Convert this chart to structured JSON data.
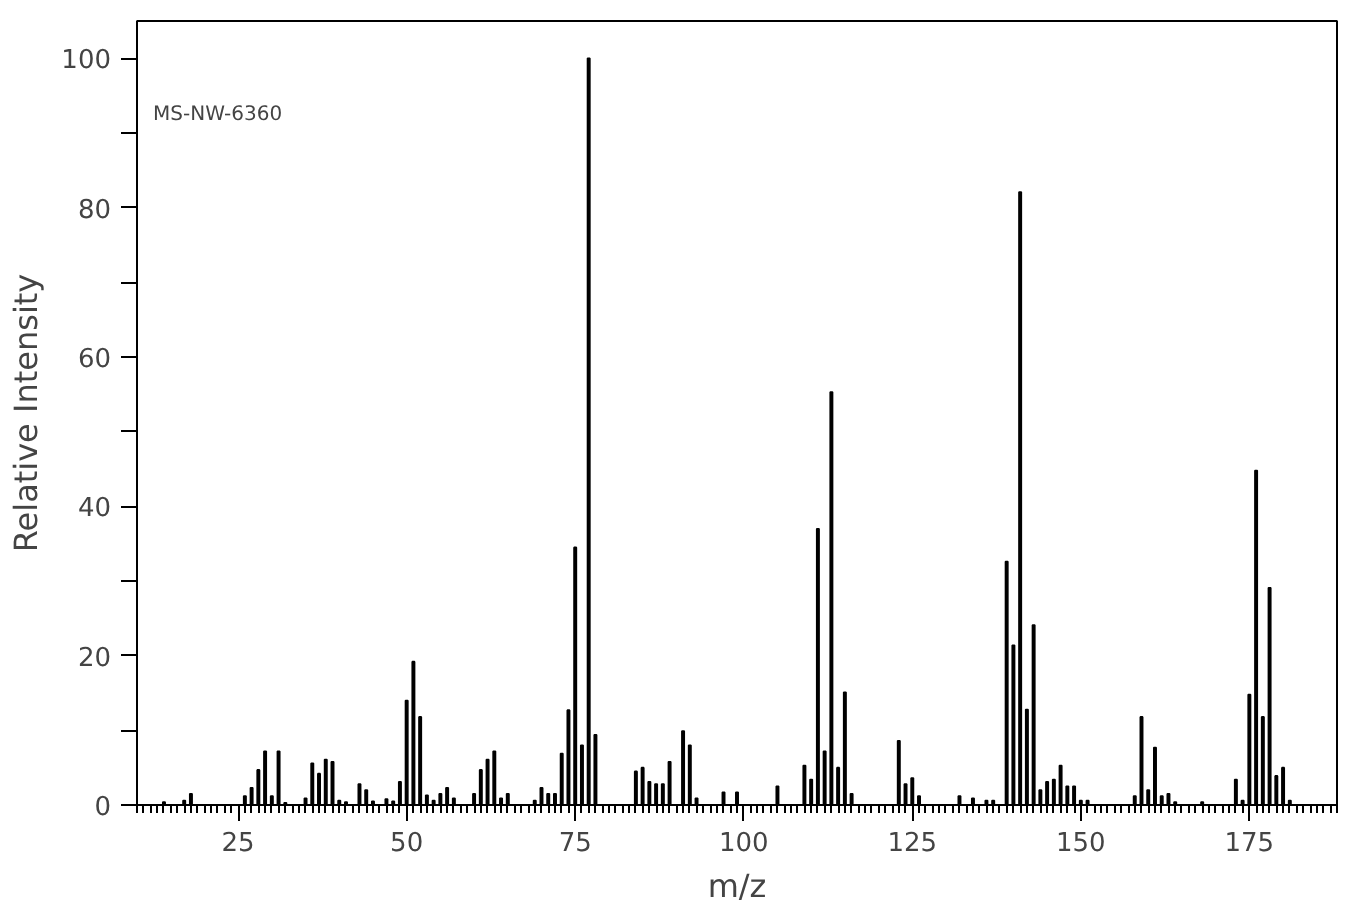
{
  "chart_data": {
    "type": "bar",
    "xlabel": "m/z",
    "ylabel": "Relative Intensity",
    "annotations": [
      "MS-NW-6360"
    ],
    "x": [
      14,
      17,
      18,
      26,
      27,
      28,
      29,
      30,
      31,
      32,
      35,
      36,
      37,
      38,
      39,
      40,
      41,
      43,
      44,
      45,
      47,
      48,
      49,
      50,
      51,
      52,
      53,
      54,
      55,
      56,
      57,
      60,
      61,
      62,
      63,
      64,
      65,
      69,
      70,
      71,
      72,
      73,
      74,
      75,
      76,
      77,
      78,
      84,
      85,
      86,
      87,
      88,
      89,
      91,
      92,
      93,
      97,
      99,
      105,
      109,
      110,
      111,
      112,
      113,
      114,
      115,
      116,
      123,
      124,
      125,
      126,
      132,
      134,
      136,
      137,
      139,
      140,
      141,
      142,
      143,
      144,
      145,
      146,
      147,
      148,
      149,
      150,
      151,
      158,
      159,
      160,
      161,
      162,
      163,
      164,
      168,
      173,
      174,
      175,
      176,
      177,
      178,
      179,
      180,
      181
    ],
    "values": [
      0.4,
      0.6,
      1.5,
      1.2,
      2.3,
      4.7,
      7.2,
      1.2,
      7.2,
      0.3,
      0.9,
      5.6,
      4.2,
      6.1,
      5.8,
      0.6,
      0.4,
      2.8,
      2.0,
      0.5,
      0.8,
      0.5,
      3.1,
      14.0,
      19.2,
      11.8,
      1.3,
      0.6,
      1.5,
      2.3,
      0.9,
      1.5,
      4.7,
      6.1,
      7.2,
      0.9,
      1.5,
      0.6,
      2.3,
      1.5,
      1.5,
      6.9,
      12.7,
      34.5,
      8.0,
      100,
      9.4,
      4.5,
      5.0,
      3.1,
      2.8,
      2.8,
      5.8,
      9.9,
      8.0,
      0.9,
      1.7,
      1.7,
      2.5,
      5.3,
      3.4,
      37.0,
      7.2,
      55.3,
      5.0,
      15.1,
      1.5,
      8.6,
      2.8,
      3.6,
      1.2,
      1.2,
      0.9,
      0.6,
      0.6,
      32.6,
      21.4,
      82.1,
      12.8,
      24.1,
      2.0,
      3.1,
      3.4,
      5.3,
      2.5,
      2.5,
      0.6,
      0.6,
      1.2,
      11.8,
      2.0,
      7.7,
      1.2,
      1.5,
      0.4,
      0.4,
      3.4,
      0.6,
      14.8,
      44.8,
      11.8,
      29.1,
      3.9,
      5.0,
      0.6
    ],
    "color": "#000000",
    "xlim": [
      10,
      188
    ],
    "xticks": [
      25,
      50,
      75,
      100,
      125,
      150,
      175
    ],
    "ylim": [
      0,
      105
    ],
    "yticks": [
      0,
      {
        "value": 10,
        "label": null
      },
      20,
      {
        "value": 30,
        "label": null
      },
      40,
      {
        "value": 50,
        "label": null
      },
      60,
      {
        "value": 70,
        "label": null
      },
      80,
      {
        "value": 90,
        "label": null
      },
      100
    ],
    "grid": false
  }
}
